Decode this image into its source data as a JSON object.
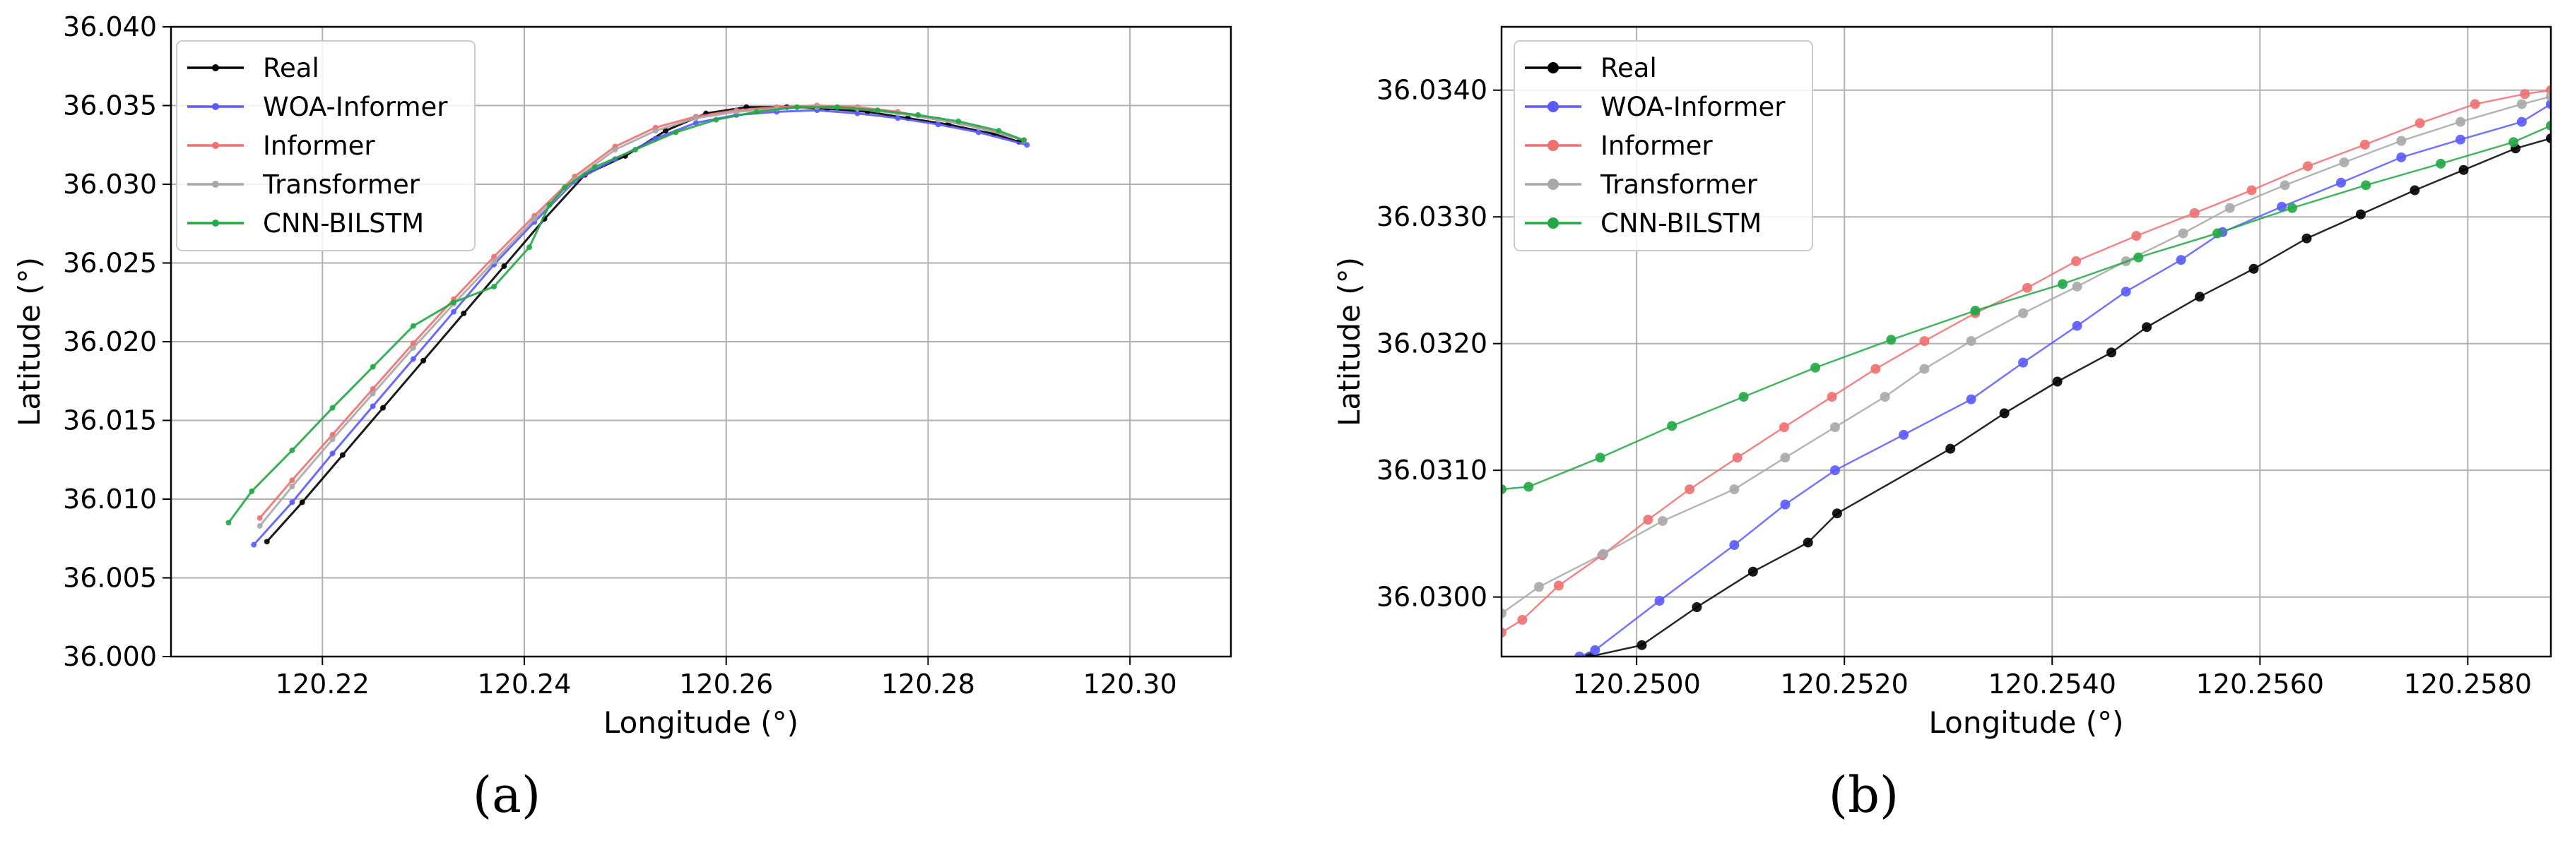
{
  "chart_data": [
    {
      "type": "line",
      "panel_label": "(a)",
      "xlabel": "Longitude (°)",
      "ylabel": "Latitude (°)",
      "xlim": [
        120.205,
        120.31
      ],
      "ylim": [
        36.0,
        36.04
      ],
      "x_ticks": [
        "120.22",
        "120.24",
        "120.26",
        "120.28",
        "120.30"
      ],
      "y_ticks": [
        "36.000",
        "36.005",
        "36.010",
        "36.015",
        "36.020",
        "36.025",
        "36.030",
        "36.035",
        "36.040"
      ],
      "x_tick_values": [
        120.22,
        120.24,
        120.26,
        120.28,
        120.3
      ],
      "y_tick_values": [
        36.0,
        36.005,
        36.01,
        36.015,
        36.02,
        36.025,
        36.03,
        36.035,
        36.04
      ],
      "grid": true,
      "legend_position": "top-left",
      "series": [
        {
          "name": "Real",
          "color": "#000000",
          "x": [
            120.2145,
            120.218,
            120.222,
            120.226,
            120.23,
            120.234,
            120.238,
            120.242,
            120.246,
            120.25,
            120.254,
            120.258,
            120.262,
            120.266,
            120.27,
            120.274,
            120.278,
            120.282,
            120.2865,
            120.289
          ],
          "y": [
            36.0073,
            36.0098,
            36.0128,
            36.0158,
            36.0188,
            36.0218,
            36.0248,
            36.0278,
            36.0306,
            36.0318,
            36.0334,
            36.0345,
            36.0349,
            36.0349,
            36.0348,
            36.0346,
            36.0342,
            36.0338,
            36.0332,
            36.0327
          ]
        },
        {
          "name": "WOA-Informer",
          "color": "#5a5aff",
          "x": [
            120.2132,
            120.217,
            120.221,
            120.225,
            120.229,
            120.233,
            120.237,
            120.241,
            120.245,
            120.249,
            120.253,
            120.257,
            120.261,
            120.265,
            120.269,
            120.273,
            120.277,
            120.281,
            120.285,
            120.2898
          ],
          "y": [
            36.0071,
            36.0098,
            36.0129,
            36.0159,
            36.0189,
            36.0219,
            36.0249,
            36.0276,
            36.0302,
            36.0316,
            36.0329,
            36.0339,
            36.0344,
            36.0346,
            36.0347,
            36.0345,
            36.0342,
            36.0338,
            36.0333,
            36.0325
          ]
        },
        {
          "name": "Informer",
          "color": "#f07070",
          "x": [
            120.2138,
            120.217,
            120.221,
            120.225,
            120.229,
            120.233,
            120.237,
            120.241,
            120.245,
            120.249,
            120.253,
            120.257,
            120.261,
            120.265,
            120.269,
            120.273,
            120.277,
            120.281,
            120.285,
            120.2895
          ],
          "y": [
            36.0088,
            36.0112,
            36.0141,
            36.017,
            36.0199,
            36.0227,
            36.0254,
            36.028,
            36.0305,
            36.0324,
            36.0336,
            36.0343,
            36.0347,
            36.0349,
            36.035,
            36.0349,
            36.0346,
            36.0341,
            36.0336,
            36.0328
          ]
        },
        {
          "name": "Transformer",
          "color": "#a8a8a8",
          "x": [
            120.2138,
            120.217,
            120.221,
            120.225,
            120.229,
            120.233,
            120.237,
            120.241,
            120.245,
            120.249,
            120.253,
            120.257,
            120.261,
            120.265,
            120.269,
            120.273,
            120.277,
            120.281,
            120.285,
            120.2895
          ],
          "y": [
            36.0083,
            36.0108,
            36.0138,
            36.0167,
            36.0196,
            36.0224,
            36.0251,
            36.0278,
            36.0303,
            36.0322,
            36.0334,
            36.0342,
            36.0346,
            36.0348,
            36.0349,
            36.0348,
            36.0345,
            36.0341,
            36.0336,
            36.0328
          ]
        },
        {
          "name": "CNN-BILSTM",
          "color": "#22a844",
          "x": [
            120.2107,
            120.213,
            120.217,
            120.221,
            120.225,
            120.229,
            120.233,
            120.237,
            120.2405,
            120.2425,
            120.244,
            120.247,
            120.251,
            120.255,
            120.259,
            120.263,
            120.267,
            120.271,
            120.275,
            120.279,
            120.283,
            120.287,
            120.2895
          ],
          "y": [
            36.0085,
            36.0105,
            36.0131,
            36.0158,
            36.0184,
            36.021,
            36.0225,
            36.0235,
            36.026,
            36.0287,
            36.0298,
            36.0311,
            36.0322,
            36.0333,
            36.0341,
            36.0346,
            36.0349,
            36.0349,
            36.0347,
            36.0344,
            36.034,
            36.0334,
            36.0328
          ]
        }
      ]
    },
    {
      "type": "line",
      "panel_label": "(b)",
      "xlabel": "Longitude (°)",
      "ylabel": "Latitude (°)",
      "xlim": [
        120.2487,
        120.2588
      ],
      "ylim": [
        36.02953,
        36.0345
      ],
      "x_ticks": [
        "120.2500",
        "120.2520",
        "120.2540",
        "120.2560",
        "120.2580"
      ],
      "y_ticks": [
        "36.0300",
        "36.0310",
        "36.0320",
        "36.0330",
        "36.0340"
      ],
      "x_tick_values": [
        120.25,
        120.252,
        120.254,
        120.256,
        120.258
      ],
      "y_tick_values": [
        36.03,
        36.031,
        36.032,
        36.033,
        36.034
      ],
      "grid": true,
      "legend_position": "top-left",
      "series": [
        {
          "name": "Real",
          "color": "#000000",
          "x": [
            120.24955,
            120.25005,
            120.25058,
            120.25112,
            120.25165,
            120.25193,
            120.25302,
            120.25354,
            120.25405,
            120.25457,
            120.25491,
            120.25542,
            120.25594,
            120.25645,
            120.25697,
            120.25749,
            120.25796,
            120.25846,
            120.2588
          ],
          "y": [
            36.02953,
            36.02962,
            36.02992,
            36.0302,
            36.03043,
            36.03066,
            36.03117,
            36.03145,
            36.0317,
            36.03193,
            36.03213,
            36.03237,
            36.03259,
            36.03283,
            36.03302,
            36.03321,
            36.03337,
            36.03354,
            36.03362
          ]
        },
        {
          "name": "WOA-Informer",
          "color": "#5a5aff",
          "x": [
            120.24945,
            120.2496,
            120.25022,
            120.25094,
            120.25143,
            120.25191,
            120.25257,
            120.25322,
            120.25372,
            120.25424,
            120.25471,
            120.25524,
            120.25564,
            120.25621,
            120.25678,
            120.25736,
            120.25793,
            120.25852,
            120.2588
          ],
          "y": [
            36.02953,
            36.02958,
            36.02997,
            36.03041,
            36.03073,
            36.031,
            36.03128,
            36.03156,
            36.03185,
            36.03214,
            36.03241,
            36.03266,
            36.03288,
            36.03308,
            36.03327,
            36.03347,
            36.03361,
            36.03375,
            36.03389
          ]
        },
        {
          "name": "Informer",
          "color": "#f07070",
          "x": [
            120.2487,
            120.2489,
            120.24925,
            120.24967,
            120.25011,
            120.25051,
            120.25097,
            120.25142,
            120.25188,
            120.2523,
            120.25277,
            120.25326,
            120.25376,
            120.25423,
            120.25481,
            120.25537,
            120.25592,
            120.25646,
            120.25701,
            120.25754,
            120.25807,
            120.25855,
            120.2588
          ],
          "y": [
            36.02972,
            36.02982,
            36.03009,
            36.03033,
            36.03061,
            36.03085,
            36.0311,
            36.03134,
            36.03158,
            36.0318,
            36.03202,
            36.03224,
            36.03244,
            36.03265,
            36.03285,
            36.03303,
            36.03321,
            36.0334,
            36.03357,
            36.03374,
            36.03389,
            36.03397,
            36.034
          ]
        },
        {
          "name": "Transformer",
          "color": "#a8a8a8",
          "x": [
            120.2487,
            120.24906,
            120.24968,
            120.25025,
            120.25094,
            120.25143,
            120.25191,
            120.25239,
            120.25277,
            120.25322,
            120.25372,
            120.25424,
            120.25471,
            120.25526,
            120.25571,
            120.25624,
            120.25681,
            120.25736,
            120.25793,
            120.25852,
            120.2588
          ],
          "y": [
            36.02987,
            36.03008,
            36.03034,
            36.0306,
            36.03085,
            36.0311,
            36.03134,
            36.03158,
            36.0318,
            36.03202,
            36.03224,
            36.03245,
            36.03265,
            36.03287,
            36.03307,
            36.03325,
            36.03343,
            36.0336,
            36.03375,
            36.03389,
            36.03395
          ]
        },
        {
          "name": "CNN-BILSTM",
          "color": "#22a844",
          "x": [
            120.2487,
            120.24896,
            120.24965,
            120.25034,
            120.25103,
            120.25172,
            120.25245,
            120.25326,
            120.2541,
            120.25483,
            120.25559,
            120.25631,
            120.25702,
            120.25774,
            120.25844,
            120.2588
          ],
          "y": [
            36.03085,
            36.03087,
            36.0311,
            36.03135,
            36.03158,
            36.03181,
            36.03203,
            36.03226,
            36.03247,
            36.03268,
            36.03287,
            36.03307,
            36.03325,
            36.03342,
            36.03359,
            36.03372
          ]
        }
      ]
    }
  ]
}
